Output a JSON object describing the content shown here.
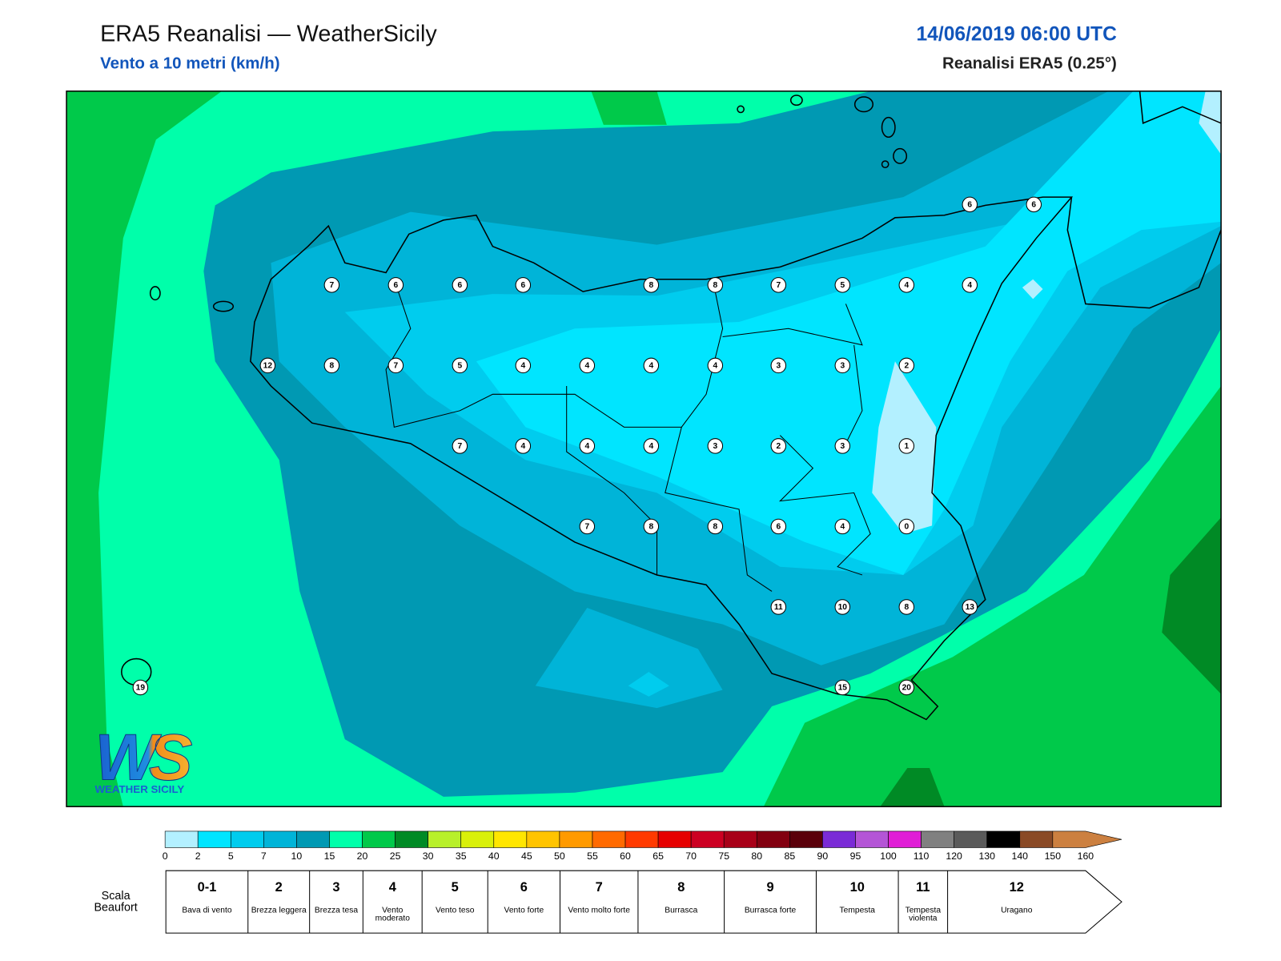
{
  "header": {
    "title": "ERA5 Reanalisi — WeatherSicily",
    "subtitle": "Vento a 10 metri (km/h)",
    "datetime": "14/06/2019 06:00 UTC",
    "source": "Reanalisi ERA5 (0.25°)"
  },
  "logo": {
    "mark": "WS",
    "name": "WEATHER SICILY"
  },
  "stations": [
    {
      "value": 6
    },
    {
      "value": 6
    },
    {
      "value": 7
    },
    {
      "value": 6
    },
    {
      "value": 6
    },
    {
      "value": 6
    },
    {
      "value": 8
    },
    {
      "value": 8
    },
    {
      "value": 7
    },
    {
      "value": 5
    },
    {
      "value": 4
    },
    {
      "value": 4
    },
    {
      "value": 12
    },
    {
      "value": 8
    },
    {
      "value": 7
    },
    {
      "value": 5
    },
    {
      "value": 4
    },
    {
      "value": 4
    },
    {
      "value": 4
    },
    {
      "value": 4
    },
    {
      "value": 3
    },
    {
      "value": 3
    },
    {
      "value": 2
    },
    {
      "value": 7
    },
    {
      "value": 4
    },
    {
      "value": 4
    },
    {
      "value": 4
    },
    {
      "value": 3
    },
    {
      "value": 2
    },
    {
      "value": 3
    },
    {
      "value": 1
    },
    {
      "value": 7
    },
    {
      "value": 8
    },
    {
      "value": 8
    },
    {
      "value": 6
    },
    {
      "value": 4
    },
    {
      "value": 0
    },
    {
      "value": 11
    },
    {
      "value": 10
    },
    {
      "value": 8
    },
    {
      "value": 13
    },
    {
      "value": 19
    },
    {
      "value": 15
    },
    {
      "value": 20
    }
  ],
  "colorbar": {
    "ticks": [
      0,
      2,
      5,
      7,
      10,
      15,
      20,
      25,
      30,
      35,
      40,
      45,
      50,
      55,
      60,
      65,
      70,
      75,
      80,
      85,
      90,
      95,
      100,
      110,
      120,
      130,
      140,
      150,
      160
    ],
    "colors": [
      "#b3f0ff",
      "#00e5ff",
      "#00ccee",
      "#00b4d8",
      "#0099b3",
      "#00ffaa",
      "#00c94a",
      "#008a25",
      "#b8f02a",
      "#d9f00a",
      "#ffe600",
      "#ffc400",
      "#ff9a00",
      "#ff6a00",
      "#ff3a00",
      "#e60000",
      "#cc0022",
      "#a80018",
      "#820010",
      "#5a000a",
      "#7a2bd6",
      "#b455d6",
      "#e01ed6",
      "#808080",
      "#5a5a5a",
      "#000000",
      "#8a4a26",
      "#cc8040"
    ]
  },
  "beaufort": {
    "label": "Scala Beaufort",
    "levels": [
      {
        "force": "0-1",
        "label": "Bava di vento"
      },
      {
        "force": "2",
        "label": "Brezza leggera"
      },
      {
        "force": "3",
        "label": "Brezza tesa"
      },
      {
        "force": "4",
        "label": "Vento moderato"
      },
      {
        "force": "5",
        "label": "Vento teso"
      },
      {
        "force": "6",
        "label": "Vento forte"
      },
      {
        "force": "7",
        "label": "Vento molto forte"
      },
      {
        "force": "8",
        "label": "Burrasca"
      },
      {
        "force": "9",
        "label": "Burrasca forte"
      },
      {
        "force": "10",
        "label": "Tempesta"
      },
      {
        "force": "11",
        "label": "Tempesta violenta"
      },
      {
        "force": "12",
        "label": "Uragano"
      }
    ]
  }
}
